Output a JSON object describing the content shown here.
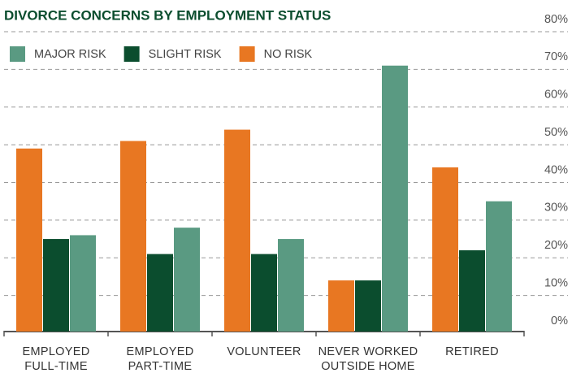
{
  "chart_data": {
    "type": "bar",
    "title": "DIVORCE CONCERNS BY EMPLOYMENT STATUS",
    "categories": [
      "EMPLOYED FULL-TIME",
      "EMPLOYED PART-TIME",
      "VOLUNTEER",
      "NEVER WORKED OUTSIDE HOME",
      "RETIRED"
    ],
    "series": [
      {
        "name": "MAJOR RISK",
        "color": "#5a9a82",
        "values": [
          26,
          28,
          25,
          71,
          35
        ]
      },
      {
        "name": "SLIGHT RISK",
        "color": "#0b4d2e",
        "values": [
          25,
          21,
          21,
          14,
          22
        ]
      },
      {
        "name": "NO RISK",
        "color": "#e87722",
        "values": [
          49,
          51,
          54,
          14,
          44
        ]
      }
    ],
    "ylim": [
      0,
      80
    ],
    "yticks": [
      {
        "value": 0,
        "label": "0%"
      },
      {
        "value": 10,
        "label": "10%"
      },
      {
        "value": 20,
        "label": "20%"
      },
      {
        "value": 30,
        "label": "30%"
      },
      {
        "value": 40,
        "label": "40%"
      },
      {
        "value": 50,
        "label": "50%"
      },
      {
        "value": 60,
        "label": "60%"
      },
      {
        "value": 70,
        "label": "70%"
      },
      {
        "value": 80,
        "label": "80%"
      }
    ],
    "grid": true
  }
}
